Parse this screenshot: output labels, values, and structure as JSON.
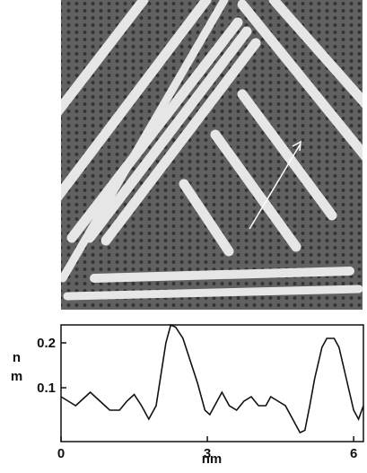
{
  "chart_data": {
    "type": "line",
    "xlabel": "nm",
    "ylabel": "nm",
    "x": [
      0,
      0.15,
      0.3,
      0.45,
      0.6,
      0.8,
      1.0,
      1.2,
      1.35,
      1.5,
      1.65,
      1.8,
      1.95,
      2.05,
      2.15,
      2.25,
      2.35,
      2.5,
      2.65,
      2.8,
      2.95,
      3.05,
      3.2,
      3.3,
      3.45,
      3.6,
      3.75,
      3.9,
      4.05,
      4.2,
      4.3,
      4.45,
      4.6,
      4.75,
      4.9,
      5.0,
      5.1,
      5.2,
      5.35,
      5.45,
      5.6,
      5.7,
      5.85,
      6.0,
      6.1,
      6.2
    ],
    "series": [
      {
        "color": "#111111",
        "values": [
          0.08,
          0.07,
          0.06,
          0.075,
          0.09,
          0.07,
          0.05,
          0.05,
          0.07,
          0.085,
          0.06,
          0.03,
          0.06,
          0.13,
          0.2,
          0.24,
          0.235,
          0.21,
          0.16,
          0.11,
          0.05,
          0.04,
          0.07,
          0.09,
          0.06,
          0.05,
          0.07,
          0.08,
          0.06,
          0.06,
          0.08,
          0.07,
          0.06,
          0.03,
          0.0,
          0.005,
          0.06,
          0.12,
          0.19,
          0.21,
          0.21,
          0.19,
          0.12,
          0.05,
          0.03,
          0.06
        ]
      }
    ],
    "xlim": [
      0,
      6.2
    ],
    "ylim": [
      -0.02,
      0.24
    ],
    "xticks": [
      0,
      3,
      6
    ],
    "yticks": [
      0.1,
      0.2
    ]
  }
}
